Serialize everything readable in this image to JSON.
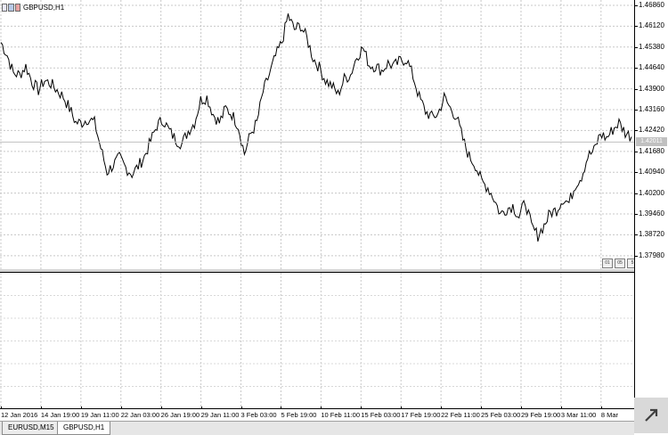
{
  "window": {
    "title": "GBPUSD,H1",
    "active_tab": "GBPUSD,H1"
  },
  "price_axis": {
    "labels": [
      "1.46860",
      "1.46120",
      "1.45380",
      "1.44640",
      "1.43900",
      "1.43160",
      "1.42420",
      "1.41680",
      "1.40940",
      "1.40200",
      "1.39460",
      "1.38720",
      "1.37980"
    ],
    "current_price": "1.42011"
  },
  "time_axis": {
    "labels": [
      "12 Jan 2016",
      "14 Jan 19:00",
      "19 Jan 11:00",
      "22 Jan 03:00",
      "26 Jan 19:00",
      "29 Jan 11:00",
      "3 Feb 03:00",
      "5 Feb 19:00",
      "10 Feb 11:00",
      "15 Feb 03:00",
      "17 Feb 19:00",
      "22 Feb 11:00",
      "25 Feb 03:00",
      "29 Feb 19:00",
      "3 Mar 11:00",
      "8 Mar"
    ]
  },
  "indicator_icons": [
    "01",
    "05",
    "5"
  ],
  "tabs": [
    {
      "label": "EURUSD,M15",
      "active": false
    },
    {
      "label": "GBPUSD,H1",
      "active": true
    }
  ],
  "chart_data": {
    "type": "line",
    "title": "GBPUSD,H1",
    "xlabel": "",
    "ylabel": "",
    "ylim": [
      1.375,
      1.4705
    ],
    "grid": true,
    "series": [
      {
        "values": [
          1.4555,
          1.451,
          1.4445,
          1.444,
          1.447,
          1.4415,
          1.4385,
          1.442,
          1.4408,
          1.4385,
          1.4362,
          1.432,
          1.427,
          1.427,
          1.4285,
          1.427,
          1.418,
          1.4095,
          1.412,
          1.4145,
          1.411,
          1.4088,
          1.4115,
          1.415,
          1.4205,
          1.426,
          1.428,
          1.424,
          1.421,
          1.4195,
          1.424,
          1.427,
          1.435,
          1.436,
          1.43,
          1.427,
          1.432,
          1.43,
          1.426,
          1.416,
          1.423,
          1.427,
          1.438,
          1.444,
          1.4505,
          1.4555,
          1.465,
          1.46,
          1.4615,
          1.457,
          1.45,
          1.4465,
          1.442,
          1.44,
          1.437,
          1.4425,
          1.444,
          1.4505,
          1.4535,
          1.4475,
          1.447,
          1.4455,
          1.448,
          1.447,
          1.449,
          1.4495,
          1.4435,
          1.436,
          1.431,
          1.429,
          1.43,
          1.436,
          1.432,
          1.429,
          1.421,
          1.415,
          1.412,
          1.406,
          1.404,
          1.4,
          1.3945,
          1.3965,
          1.3975,
          1.3935,
          1.399,
          1.39,
          1.387,
          1.3905,
          1.395,
          1.396,
          1.4,
          1.3985,
          1.405,
          1.408,
          1.415,
          1.417,
          1.423,
          1.4215,
          1.4245,
          1.427,
          1.4235,
          1.422
        ]
      }
    ]
  }
}
